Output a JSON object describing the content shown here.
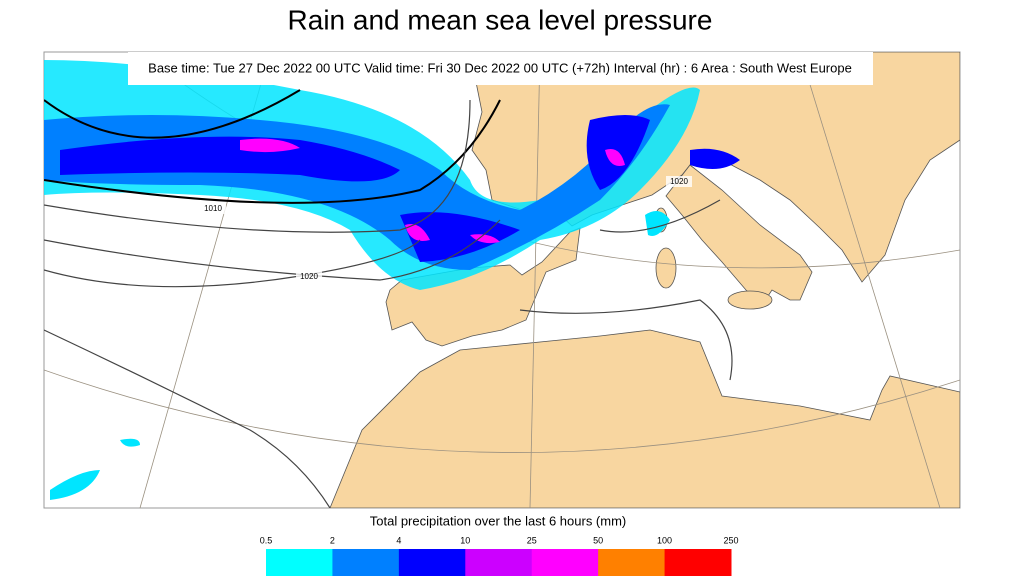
{
  "header": {
    "title": "Rain and mean sea level pressure",
    "subtitle": "Base time: Tue 27 Dec 2022 00 UTC Valid time: Fri 30 Dec 2022 00 UTC (+72h) Interval (hr) : 6 Area : South West Europe"
  },
  "map": {
    "isobar_labels": [
      "1010",
      "1020",
      "1020"
    ]
  },
  "legend": {
    "title": "Total precipitation over the last 6 hours (mm)",
    "ticks": [
      0.5,
      2,
      4,
      10,
      25,
      50,
      100,
      250
    ],
    "colors": [
      "#00ffff",
      "#0080ff",
      "#0000ff",
      "#cc00ff",
      "#ff00ff",
      "#ff8000",
      "#ff0000"
    ]
  }
}
